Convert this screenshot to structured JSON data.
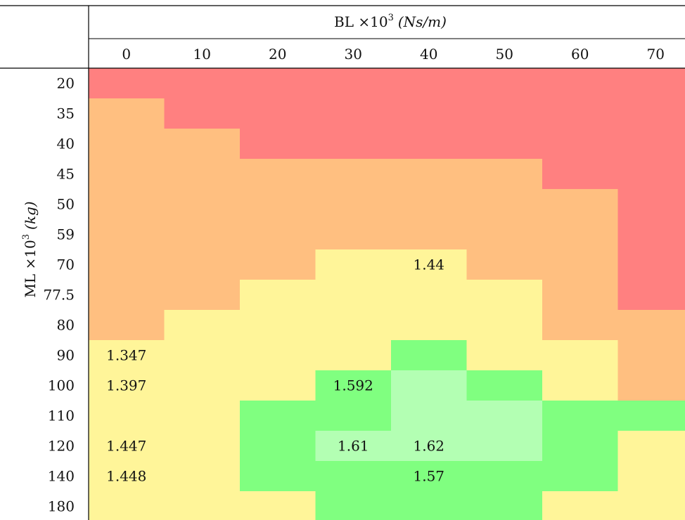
{
  "chart_data": {
    "type": "heatmap",
    "col_header": "BL ×10",
    "col_header_exp": "3",
    "col_header_unit": "(Ns/m)",
    "row_header": "ML ×10",
    "row_header_exp": "3",
    "row_header_unit": "(kg)",
    "columns": [
      "0",
      "10",
      "20",
      "30",
      "40",
      "50",
      "60",
      "70"
    ],
    "rows": [
      "20",
      "35",
      "40",
      "45",
      "50",
      "59",
      "70",
      "77.5",
      "80",
      "90",
      "100",
      "110",
      "120",
      "140",
      "180"
    ],
    "color_scale": {
      "r": "#ff8080",
      "o": "#ffbf80",
      "y": "#fff599",
      "g": "#80ff80",
      "l": "#b3ffb3"
    },
    "cell_classes": [
      [
        "r",
        "r",
        "r",
        "r",
        "r",
        "r",
        "r",
        "r"
      ],
      [
        "o",
        "r",
        "r",
        "r",
        "r",
        "r",
        "r",
        "r"
      ],
      [
        "o",
        "o",
        "r",
        "r",
        "r",
        "r",
        "r",
        "r"
      ],
      [
        "o",
        "o",
        "o",
        "o",
        "o",
        "o",
        "r",
        "r"
      ],
      [
        "o",
        "o",
        "o",
        "o",
        "o",
        "o",
        "o",
        "r"
      ],
      [
        "o",
        "o",
        "o",
        "o",
        "o",
        "o",
        "o",
        "r"
      ],
      [
        "o",
        "o",
        "o",
        "y",
        "y",
        "o",
        "o",
        "r"
      ],
      [
        "o",
        "o",
        "y",
        "y",
        "y",
        "y",
        "o",
        "r"
      ],
      [
        "o",
        "y",
        "y",
        "y",
        "y",
        "y",
        "o",
        "o"
      ],
      [
        "y",
        "y",
        "y",
        "y",
        "g",
        "y",
        "y",
        "o"
      ],
      [
        "y",
        "y",
        "y",
        "g",
        "l",
        "g",
        "y",
        "o"
      ],
      [
        "y",
        "y",
        "g",
        "g",
        "l",
        "l",
        "g",
        "g"
      ],
      [
        "y",
        "y",
        "g",
        "l",
        "l",
        "l",
        "g",
        "y"
      ],
      [
        "y",
        "y",
        "g",
        "g",
        "g",
        "g",
        "g",
        "y"
      ],
      [
        "y",
        "y",
        "y",
        "g",
        "g",
        "g",
        "y",
        "y"
      ]
    ],
    "cell_labels": [
      {
        "row": 6,
        "col": 4,
        "text": "1.44"
      },
      {
        "row": 9,
        "col": 0,
        "text": "1.347"
      },
      {
        "row": 10,
        "col": 0,
        "text": "1.397"
      },
      {
        "row": 10,
        "col": 3,
        "text": "1.592"
      },
      {
        "row": 12,
        "col": 0,
        "text": "1.447"
      },
      {
        "row": 12,
        "col": 3,
        "text": "1.61"
      },
      {
        "row": 12,
        "col": 4,
        "text": "1.62"
      },
      {
        "row": 13,
        "col": 0,
        "text": "1.448"
      },
      {
        "row": 13,
        "col": 4,
        "text": "1.57"
      }
    ]
  }
}
